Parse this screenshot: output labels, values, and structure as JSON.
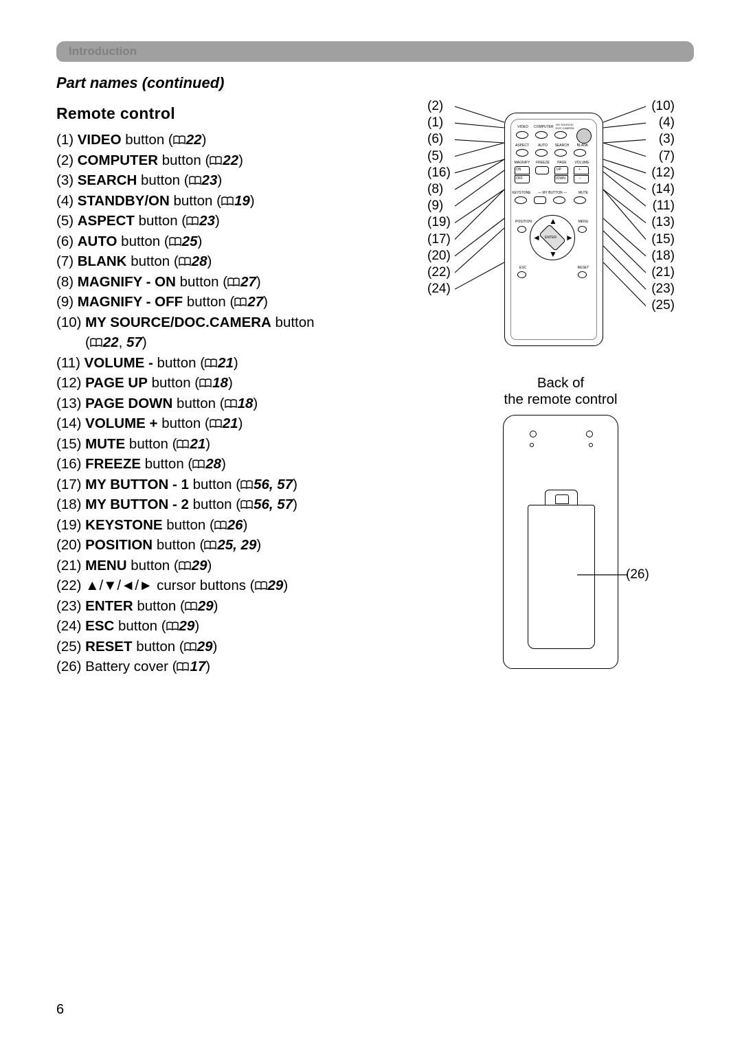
{
  "header": {
    "intro_label": "Introduction",
    "subtitle": "Part names (continued)",
    "section": "Remote control"
  },
  "items": [
    {
      "num": "(1)",
      "name": "VIDEO",
      "suffix": " button",
      "ref": "22"
    },
    {
      "num": "(2)",
      "name": "COMPUTER",
      "suffix": " button",
      "ref": "22"
    },
    {
      "num": "(3)",
      "name": "SEARCH",
      "suffix": " button",
      "ref": "23"
    },
    {
      "num": "(4)",
      "name": "STANDBY/ON",
      "suffix": " button",
      "ref": "19"
    },
    {
      "num": "(5)",
      "name": "ASPECT",
      "suffix": " button",
      "ref": "23"
    },
    {
      "num": "(6)",
      "name": "AUTO",
      "suffix": " button",
      "ref": "25"
    },
    {
      "num": "(7)",
      "name": "BLANK",
      "suffix": " button",
      "ref": "28"
    },
    {
      "num": "(8)",
      "name": "MAGNIFY - ON",
      "suffix": " button",
      "ref": "27"
    },
    {
      "num": "(9)",
      "name": "MAGNIFY - OFF",
      "suffix": " button",
      "ref": "27"
    },
    {
      "num": "(10)",
      "name": "MY SOURCE/DOC.CAMERA",
      "suffix": " button",
      "ref": "22, 57",
      "wrapRef": true
    },
    {
      "num": "(11)",
      "name": "VOLUME -",
      "suffix": " button",
      "ref": "21"
    },
    {
      "num": "(12)",
      "name": "PAGE UP",
      "suffix": " button",
      "ref": "18"
    },
    {
      "num": "(13)",
      "name": "PAGE DOWN",
      "suffix": " button",
      "ref": "18"
    },
    {
      "num": "(14)",
      "name": "VOLUME +",
      "suffix": " button",
      "ref": "21"
    },
    {
      "num": "(15)",
      "name": "MUTE",
      "suffix": " button",
      "ref": "21"
    },
    {
      "num": "(16)",
      "name": "FREEZE",
      "suffix": " button",
      "ref": "28"
    },
    {
      "num": "(17)",
      "name": "MY BUTTON - 1",
      "suffix": " button",
      "ref": "56, 57"
    },
    {
      "num": "(18)",
      "name": "MY BUTTON - 2",
      "suffix": " button",
      "ref": "56, 57"
    },
    {
      "num": "(19)",
      "name": "KEYSTONE",
      "suffix": " button",
      "ref": "26"
    },
    {
      "num": "(20)",
      "name": "POSITION",
      "suffix": " button",
      "ref": "25, 29"
    },
    {
      "num": "(21)",
      "name": "MENU",
      "suffix": " button",
      "ref": "29"
    },
    {
      "num": "(22)",
      "name": "▲/▼/◄/►",
      "suffix": " cursor buttons",
      "ref": "29",
      "notBold": true
    },
    {
      "num": "(23)",
      "name": "ENTER",
      "suffix": " button",
      "ref": "29"
    },
    {
      "num": "(24)",
      "name": "ESC",
      "suffix": " button",
      "ref": "29"
    },
    {
      "num": "(25)",
      "name": "RESET",
      "suffix": " button",
      "ref": "29"
    },
    {
      "num": "(26)",
      "name": "",
      "suffix": "Battery cover",
      "ref": "17",
      "plain": true
    }
  ],
  "back_label_line1": "Back of",
  "back_label_line2": "the remote control",
  "page_number": "6",
  "callouts_left": [
    "(2)",
    "(1)",
    "(6)",
    "(5)",
    "(16)",
    "(8)",
    "(9)",
    "(19)",
    "(17)",
    "(20)",
    "(22)",
    "(24)"
  ],
  "callouts_right": [
    "(10)",
    "(4)",
    "(3)",
    "(7)",
    "(12)",
    "(14)",
    "(11)",
    "(13)",
    "(15)",
    "(18)",
    "(21)",
    "(23)",
    "(25)"
  ],
  "back_callout": "(26)",
  "remote_button_labels": {
    "r1": [
      "VIDEO",
      "COMPUTER",
      "MY SOURCE/\nDOC CAMERA",
      ""
    ],
    "r2": [
      "ASPECT",
      "AUTO",
      "SEARCH",
      "BLANK"
    ],
    "r3_left": "MAGNIFY",
    "r3_mid": "FREEZE",
    "r3_right1": "PAGE",
    "r3_right2": "VOLUME",
    "r3_buttons_l": [
      "ON",
      "OFF"
    ],
    "r3_buttons_m": [
      "UP",
      "DOWN"
    ],
    "r4": [
      "KEYSTONE",
      "",
      "MY BUTTON",
      "",
      "MUTE"
    ],
    "r5": [
      "POSITION",
      "MENU"
    ],
    "r6": [
      "ESC",
      "ENTER",
      "RESET"
    ]
  },
  "colors": {
    "bar_bg": "#a0a0a0",
    "bar_text": "#808080",
    "text": "#000000",
    "page_bg": "#ffffff"
  }
}
